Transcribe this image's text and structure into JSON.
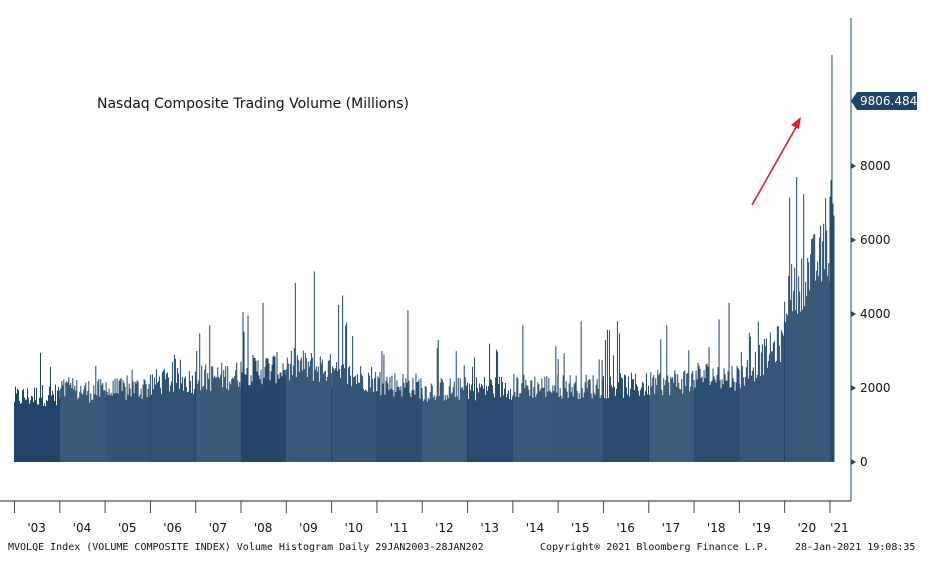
{
  "chart_data": {
    "type": "bar",
    "title": "Nasdaq Composite Trading Volume (Millions)",
    "ylim": [
      -1000,
      12000
    ],
    "y_ticks": [
      0,
      2000,
      4000,
      6000,
      8000
    ],
    "x_tick_labels": [
      "'03",
      "'04",
      "'05",
      "'06",
      "'07",
      "'08",
      "'09",
      "'10",
      "'11",
      "'12",
      "'13",
      "'14",
      "'15",
      "'16",
      "'17",
      "'18",
      "'19",
      "'20",
      "'21"
    ],
    "series": [
      {
        "values_by_year": [
          {
            "year": "'03",
            "typical": 1700,
            "peak": 2950
          },
          {
            "year": "'04",
            "typical": 1900,
            "peak": 2600
          },
          {
            "year": "'05",
            "typical": 1850,
            "peak": 2500
          },
          {
            "year": "'06",
            "typical": 2100,
            "peak": 2900
          },
          {
            "year": "'07",
            "typical": 2200,
            "peak": 3700
          },
          {
            "year": "'08",
            "typical": 2400,
            "peak": 4300
          },
          {
            "year": "'09",
            "typical": 2600,
            "peak": 5150
          },
          {
            "year": "'10",
            "typical": 2300,
            "peak": 4500
          },
          {
            "year": "'11",
            "typical": 2100,
            "peak": 4100
          },
          {
            "year": "'12",
            "typical": 1900,
            "peak": 3300
          },
          {
            "year": "'13",
            "typical": 1950,
            "peak": 3200
          },
          {
            "year": "'14",
            "typical": 2000,
            "peak": 3700
          },
          {
            "year": "'15",
            "typical": 2000,
            "peak": 3800
          },
          {
            "year": "'16",
            "typical": 2000,
            "peak": 3800
          },
          {
            "year": "'17",
            "typical": 2050,
            "peak": 3700
          },
          {
            "year": "'18",
            "typical": 2300,
            "peak": 4300
          },
          {
            "year": "'19",
            "typical": 2200,
            "peak": 3800
          },
          {
            "year": "'20",
            "typical": 4300,
            "peak": 7700
          },
          {
            "year": "'21",
            "typical": 7000,
            "peak": 11000
          }
        ]
      }
    ],
    "last_value_label": "9806.484",
    "colors": {
      "bars": "#1f4468",
      "arrow": "#e02020",
      "axis": "#1f4468",
      "badge": "#1f4468"
    },
    "annotation": "red arrow pointing up toward the latest volume spike"
  },
  "footer": {
    "left": "MVOLQE Index (VOLUME COMPOSITE INDEX) Volume Histogram  Daily 29JAN2003-28JAN202",
    "middle": "Copyright® 2021 Bloomberg Finance L.P.",
    "right": "28-Jan-2021 19:08:35"
  }
}
